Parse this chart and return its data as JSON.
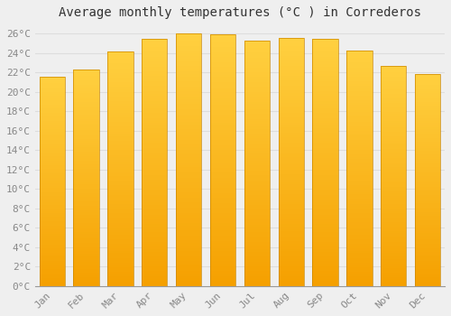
{
  "title": "Average monthly temperatures (°C ) in Correderos",
  "months": [
    "Jan",
    "Feb",
    "Mar",
    "Apr",
    "May",
    "Jun",
    "Jul",
    "Aug",
    "Sep",
    "Oct",
    "Nov",
    "Dec"
  ],
  "values": [
    21.5,
    22.3,
    24.1,
    25.4,
    26.0,
    25.9,
    25.3,
    25.5,
    25.4,
    24.2,
    22.7,
    21.8
  ],
  "bar_color_bottom": "#F5A000",
  "bar_color_top": "#FFD040",
  "background_color": "#EFEFEF",
  "grid_color": "#DDDDDD",
  "ylim": [
    0,
    27
  ],
  "ytick_step": 2,
  "title_fontsize": 10,
  "tick_fontsize": 8,
  "font_family": "monospace"
}
